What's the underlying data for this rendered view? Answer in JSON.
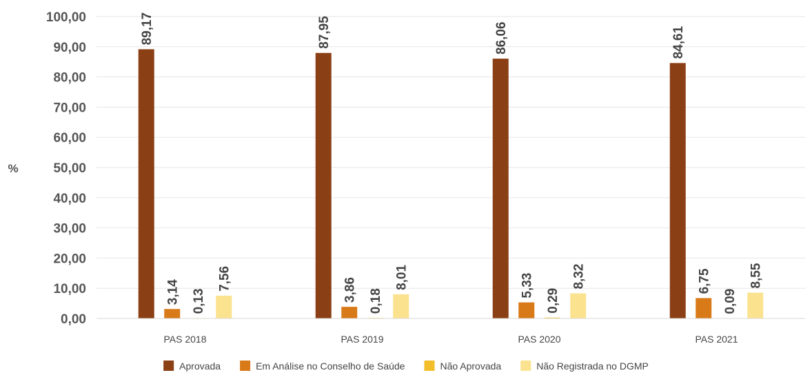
{
  "chart_data": {
    "type": "bar",
    "ylabel": "%",
    "ylim": [
      0,
      100
    ],
    "yticks": [
      "0,00",
      "10,00",
      "20,00",
      "30,00",
      "40,00",
      "50,00",
      "60,00",
      "70,00",
      "80,00",
      "90,00",
      "100,00"
    ],
    "grid": true,
    "legend_position": "bottom",
    "categories": [
      "PAS 2018",
      "PAS 2019",
      "PAS 2020",
      "PAS 2021"
    ],
    "series": [
      {
        "name": "Aprovada",
        "color": "#8B3F14",
        "values": [
          89.17,
          87.95,
          86.06,
          84.61
        ],
        "labels": [
          "89,17",
          "87,95",
          "86,06",
          "84,61"
        ]
      },
      {
        "name": "Em Análise no Conselho de Saúde",
        "color": "#D97A19",
        "values": [
          3.14,
          3.86,
          5.33,
          6.75
        ],
        "labels": [
          "3,14",
          "3,86",
          "5,33",
          "6,75"
        ]
      },
      {
        "name": "Não Aprovada",
        "color": "#F2BE2A",
        "values": [
          0.13,
          0.18,
          0.29,
          0.09
        ],
        "labels": [
          "0,13",
          "0,18",
          "0,29",
          "0,09"
        ]
      },
      {
        "name": "Não Registrada no DGMP",
        "color": "#FBE28E",
        "values": [
          7.56,
          8.01,
          8.32,
          8.55
        ],
        "labels": [
          "7,56",
          "8,01",
          "8,32",
          "8,55"
        ]
      }
    ]
  }
}
